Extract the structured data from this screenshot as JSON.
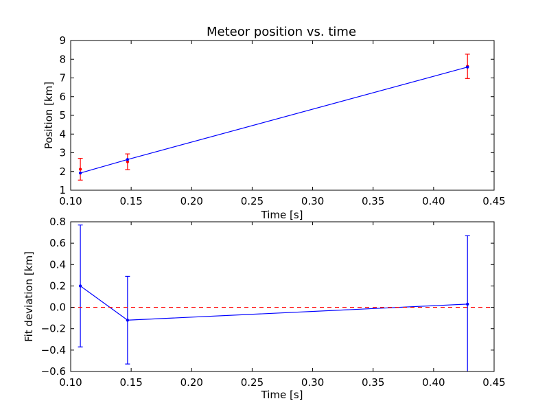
{
  "figure": {
    "title": "Meteor position vs. time"
  },
  "chart_data": [
    {
      "type": "line",
      "title": "Meteor position vs. time",
      "xlabel": "Time [s]",
      "ylabel": "Position [km]",
      "xlim": [
        0.1,
        0.45
      ],
      "ylim": [
        1,
        9
      ],
      "xticks": [
        "0.10",
        "0.15",
        "0.20",
        "0.25",
        "0.30",
        "0.35",
        "0.40",
        "0.45"
      ],
      "yticks": [
        "1",
        "2",
        "3",
        "4",
        "5",
        "6",
        "7",
        "8",
        "9"
      ],
      "grid": false,
      "series": [
        {
          "kind": "errorbar-points",
          "color": "#ff0000",
          "x": [
            0.108,
            0.147,
            0.428
          ],
          "y": [
            2.12,
            2.52,
            7.62
          ],
          "yerr": [
            0.58,
            0.42,
            0.65
          ]
        },
        {
          "kind": "line",
          "color": "#0000ff",
          "x": [
            0.108,
            0.147,
            0.428
          ],
          "y": [
            1.92,
            2.64,
            7.58
          ]
        }
      ]
    },
    {
      "type": "line",
      "xlabel": "Time [s]",
      "ylabel": "Fit deviation [km]",
      "xlim": [
        0.1,
        0.45
      ],
      "ylim": [
        -0.6,
        0.8
      ],
      "xticks": [
        "0.10",
        "0.15",
        "0.20",
        "0.25",
        "0.30",
        "0.35",
        "0.40",
        "0.45"
      ],
      "yticks": [
        "−0.6",
        "−0.4",
        "−0.2",
        "0.0",
        "0.2",
        "0.4",
        "0.6",
        "0.8"
      ],
      "grid": false,
      "series": [
        {
          "kind": "line-errorbar",
          "color": "#0000ff",
          "x": [
            0.108,
            0.147,
            0.428
          ],
          "y": [
            0.2,
            -0.12,
            0.03
          ],
          "yerr": [
            0.57,
            0.41,
            0.64
          ]
        },
        {
          "kind": "reference-line",
          "color": "#ff0000",
          "style": "dashed",
          "y": 0.0
        }
      ]
    }
  ]
}
